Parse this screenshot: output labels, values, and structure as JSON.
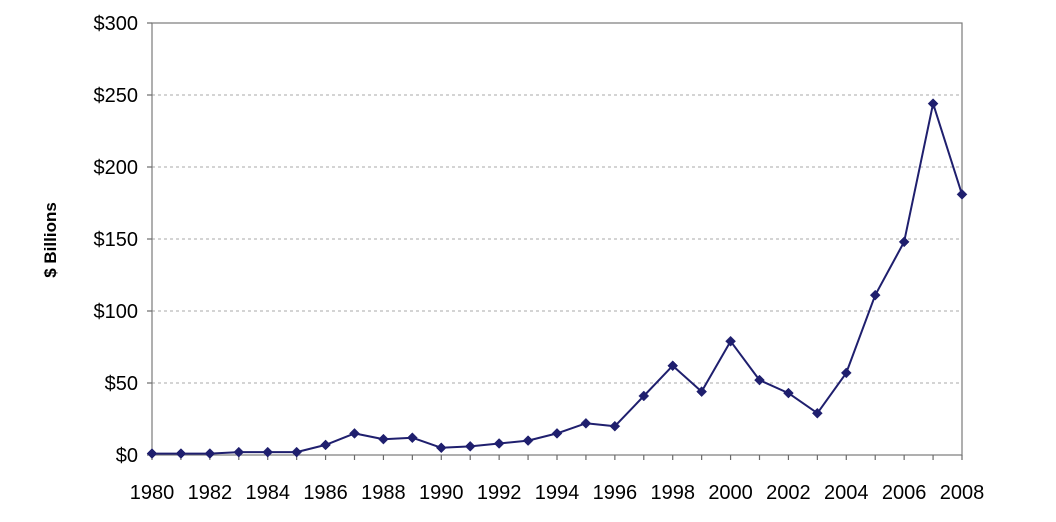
{
  "chart_data": {
    "type": "line",
    "title": "",
    "xlabel": "",
    "ylabel": "$ Billions",
    "x": [
      1980,
      1981,
      1982,
      1983,
      1984,
      1985,
      1986,
      1987,
      1988,
      1989,
      1990,
      1991,
      1992,
      1993,
      1994,
      1995,
      1996,
      1997,
      1998,
      1999,
      2000,
      2001,
      2002,
      2003,
      2004,
      2005,
      2006,
      2007,
      2008
    ],
    "series": [
      {
        "values": [
          1,
          1,
          1,
          2,
          2,
          2,
          7,
          15,
          11,
          12,
          5,
          6,
          8,
          10,
          15,
          22,
          20,
          41,
          62,
          44,
          79,
          52,
          43,
          29,
          57,
          111,
          148,
          244,
          181
        ],
        "color": "#1f1f6e",
        "marker": "diamond"
      }
    ],
    "x_tick_labels": [
      "1980",
      "1982",
      "1984",
      "1986",
      "1988",
      "1990",
      "1992",
      "1994",
      "1996",
      "1998",
      "2000",
      "2002",
      "2004",
      "2006",
      "2008"
    ],
    "y_tick_labels": [
      "$0",
      "$50",
      "$100",
      "$150",
      "$200",
      "$250",
      "$300"
    ],
    "ylim": [
      0,
      300
    ],
    "xlim": [
      1980,
      2008
    ],
    "grid": "horizontal-dashed",
    "legend": "none"
  }
}
